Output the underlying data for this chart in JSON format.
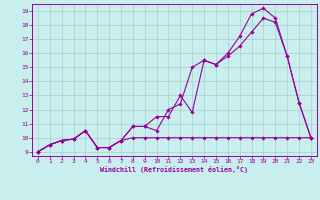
{
  "bg_color": "#c8eeee",
  "grid_color": "#aacccc",
  "line_color": "#990099",
  "xlabel": "Windchill (Refroidissement éolien,°C)",
  "xmin": 0,
  "xmax": 23,
  "ymin": 9,
  "ymax": 19,
  "line1_x": [
    0,
    1,
    2,
    3,
    4,
    5,
    6,
    7,
    8,
    9,
    10,
    11,
    12,
    13,
    14,
    15,
    16,
    17,
    18,
    19,
    20,
    21,
    22,
    23
  ],
  "line1_y": [
    9.0,
    9.5,
    9.8,
    9.9,
    10.5,
    9.3,
    9.3,
    9.8,
    10.0,
    10.0,
    10.0,
    10.0,
    10.0,
    10.0,
    10.0,
    10.0,
    10.0,
    10.0,
    10.0,
    10.0,
    10.0,
    10.0,
    10.0,
    10.0
  ],
  "line2_x": [
    0,
    1,
    2,
    3,
    4,
    5,
    6,
    7,
    8,
    9,
    10,
    11,
    12,
    13,
    14,
    15,
    16,
    17,
    18,
    19,
    20,
    21,
    22,
    23
  ],
  "line2_y": [
    9.0,
    9.5,
    9.8,
    9.9,
    10.5,
    9.3,
    9.3,
    9.8,
    10.8,
    10.8,
    11.5,
    11.5,
    13.0,
    11.8,
    15.5,
    15.2,
    16.0,
    17.2,
    18.8,
    19.2,
    18.5,
    15.8,
    12.5,
    10.0
  ],
  "line3_x": [
    0,
    1,
    2,
    3,
    4,
    5,
    6,
    7,
    8,
    9,
    10,
    11,
    12,
    13,
    14,
    15,
    16,
    17,
    18,
    19,
    20,
    21,
    22,
    23
  ],
  "line3_y": [
    9.0,
    9.5,
    9.8,
    9.9,
    10.5,
    9.3,
    9.3,
    9.8,
    10.8,
    10.8,
    10.5,
    12.0,
    12.4,
    15.0,
    15.5,
    15.2,
    15.8,
    16.5,
    17.5,
    18.5,
    18.2,
    15.8,
    12.5,
    10.0
  ]
}
